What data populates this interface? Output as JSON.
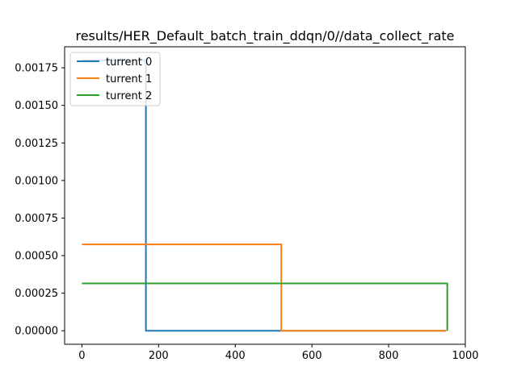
{
  "chart_data": {
    "type": "line",
    "title": "results/HER_Default_batch_train_ddqn/0//data_collect_rate",
    "xlabel": "",
    "ylabel": "",
    "xlim": [
      -45,
      1000
    ],
    "ylim": [
      -9e-05,
      0.00189
    ],
    "xticks": [
      0,
      200,
      400,
      600,
      800,
      1000
    ],
    "xtick_labels": [
      "0",
      "200",
      "400",
      "600",
      "800",
      "1000"
    ],
    "yticks": [
      0,
      0.00025,
      0.0005,
      0.00075,
      0.001,
      0.00125,
      0.0015,
      0.00175
    ],
    "ytick_labels": [
      "0.00000",
      "0.00025",
      "0.00050",
      "0.00075",
      "0.00100",
      "0.00125",
      "0.00150",
      "0.00175"
    ],
    "grid": false,
    "legend_position": "top-left",
    "series": [
      {
        "name": "turrent 0",
        "color": "#1f77b4",
        "x": [
          0,
          167,
          167,
          950
        ],
        "y": [
          0.0018,
          0.0018,
          0,
          0
        ]
      },
      {
        "name": "turrent 1",
        "color": "#ff7f0e",
        "x": [
          0,
          520,
          520,
          950
        ],
        "y": [
          0.000575,
          0.000575,
          0,
          0
        ]
      },
      {
        "name": "turrent 2",
        "color": "#2ca02c",
        "x": [
          0,
          953,
          953
        ],
        "y": [
          0.000315,
          0.000315,
          0
        ]
      }
    ]
  }
}
